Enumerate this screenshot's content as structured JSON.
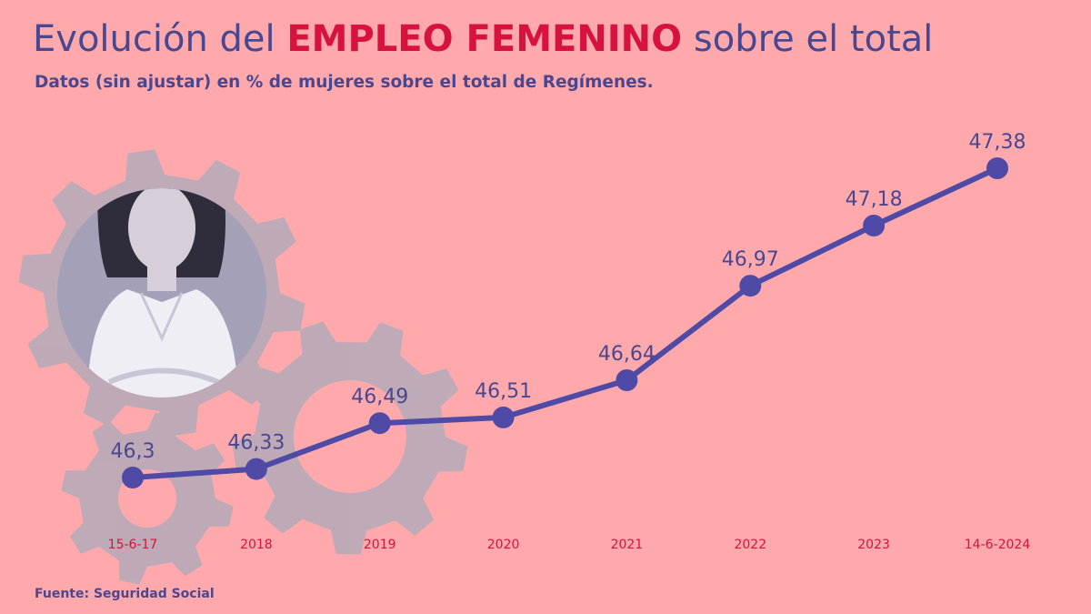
{
  "title": {
    "prefix": "Evolución del ",
    "highlight": "EMPLEO FEMENINO",
    "suffix": " sobre el total"
  },
  "subtitle": "Datos (sin ajustar) en % de mujeres sobre el total de Regímenes.",
  "source": "Fuente: Seguridad Social",
  "colors": {
    "background": "#ffa9ad",
    "accent": "#d8123e",
    "line": "#4e4aa6",
    "text": "#4a4791",
    "gear": "#b8aab8"
  },
  "chart_data": {
    "type": "line",
    "categories": [
      "15-6-17",
      "2018",
      "2019",
      "2020",
      "2021",
      "2022",
      "2023",
      "14-6-2024"
    ],
    "series": [
      {
        "values": [
          46.3,
          46.33,
          46.49,
          46.51,
          46.64,
          46.97,
          47.18,
          47.38
        ],
        "labels": [
          "46,3",
          "46,33",
          "46,49",
          "46,51",
          "46,64",
          "46,97",
          "47,18",
          "47,38"
        ]
      }
    ],
    "ylim": [
      46.0,
      47.6
    ],
    "grid": false,
    "legend": "none",
    "xlabel": "",
    "ylabel": ""
  }
}
